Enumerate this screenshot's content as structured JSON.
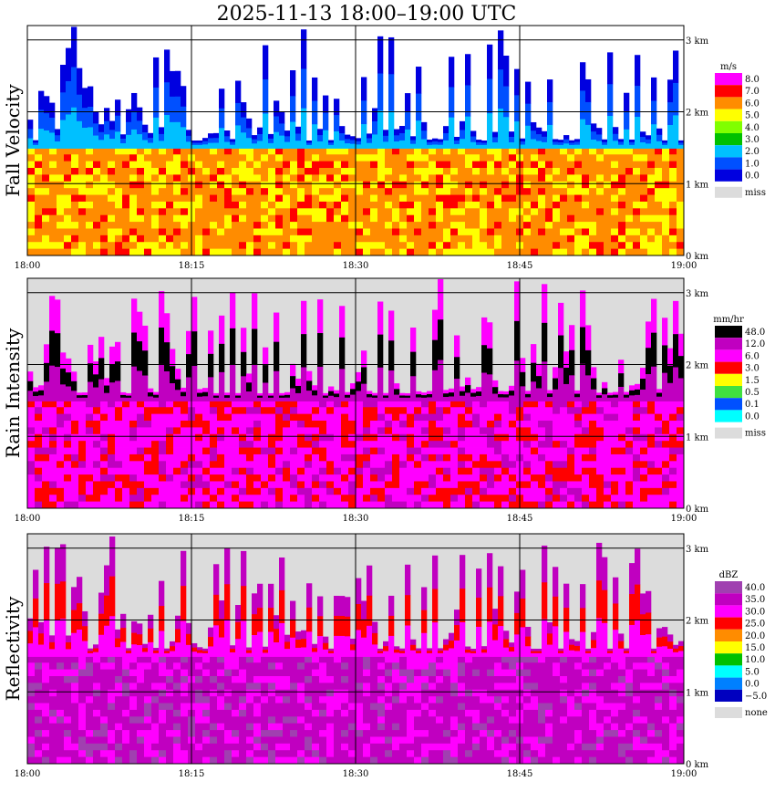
{
  "title": "2025-11-13   18:00–19:00 UTC",
  "time_labels": [
    "18:00",
    "18:15",
    "18:30",
    "18:45",
    "19:00"
  ],
  "height_labels": [
    "0 km",
    "1 km",
    "2 km",
    "3 km"
  ],
  "colors": {
    "missing": "#dcdcdc",
    "grid": "#000000",
    "background": "#ffffff"
  },
  "chart_data": [
    {
      "type": "heatmap",
      "title": "Fall Velocity",
      "xlabel": "",
      "ylabel": "",
      "x_range": [
        "18:00",
        "19:00"
      ],
      "y_range_km": [
        0,
        3.2
      ],
      "bright_band_height_km": 1.5,
      "unit": "m/s",
      "color_levels": [
        "8.0",
        "7.0",
        "6.0",
        "5.0",
        "4.0",
        "3.0",
        "2.0",
        "1.0",
        "0.0"
      ],
      "level_colors": [
        "#ff00ff",
        "#ff0000",
        "#ff8c00",
        "#ffff00",
        "#80ff00",
        "#00c000",
        "#00c0ff",
        "#0050ff",
        "#0000e0"
      ],
      "missing_label": "miss",
      "missing_color": "#dcdcdc",
      "below_band_levels": [
        6.0,
        5.0,
        7.0
      ],
      "above_band_levels": [
        2.0,
        1.0,
        0.0
      ],
      "above_band_background": "#ffffff"
    },
    {
      "type": "heatmap",
      "title": "Rain Intensity",
      "xlabel": "",
      "ylabel": "",
      "x_range": [
        "18:00",
        "19:00"
      ],
      "y_range_km": [
        0,
        3.2
      ],
      "bright_band_height_km": 1.5,
      "unit": "mm/hr",
      "color_levels": [
        "48.0",
        "12.0",
        "6.0",
        "3.0",
        "1.5",
        "0.5",
        "0.1",
        "0.0"
      ],
      "level_colors": [
        "#000000",
        "#c000c0",
        "#ff00ff",
        "#ff0000",
        "#ffff00",
        "#40e040",
        "#0050ff",
        "#00ffff"
      ],
      "missing_label": "miss",
      "missing_color": "#dcdcdc",
      "below_band_levels": [
        6.0,
        3.0,
        12.0
      ],
      "above_band_levels": [
        12.0,
        48.0,
        6.0
      ],
      "above_band_background": "#dcdcdc"
    },
    {
      "type": "heatmap",
      "title": "Reflectivity",
      "xlabel": "",
      "ylabel": "",
      "x_range": [
        "18:00",
        "19:00"
      ],
      "y_range_km": [
        0,
        3.2
      ],
      "bright_band_height_km": 1.5,
      "unit": "dBZ",
      "color_levels": [
        "40.0",
        "35.0",
        "30.0",
        "25.0",
        "20.0",
        "15.0",
        "10.0",
        "5.0",
        "0.0",
        "−5.0"
      ],
      "level_colors": [
        "#a040b0",
        "#c000c0",
        "#ff00ff",
        "#ff0000",
        "#ff8c00",
        "#ffff00",
        "#00c000",
        "#00ffff",
        "#0080ff",
        "#0000c0"
      ],
      "missing_label": "none",
      "missing_color": "#dcdcdc",
      "below_band_levels": [
        35.0,
        30.0,
        40.0
      ],
      "above_band_levels": [
        30.0,
        25.0,
        35.0
      ],
      "above_band_background": "#dcdcdc"
    }
  ]
}
